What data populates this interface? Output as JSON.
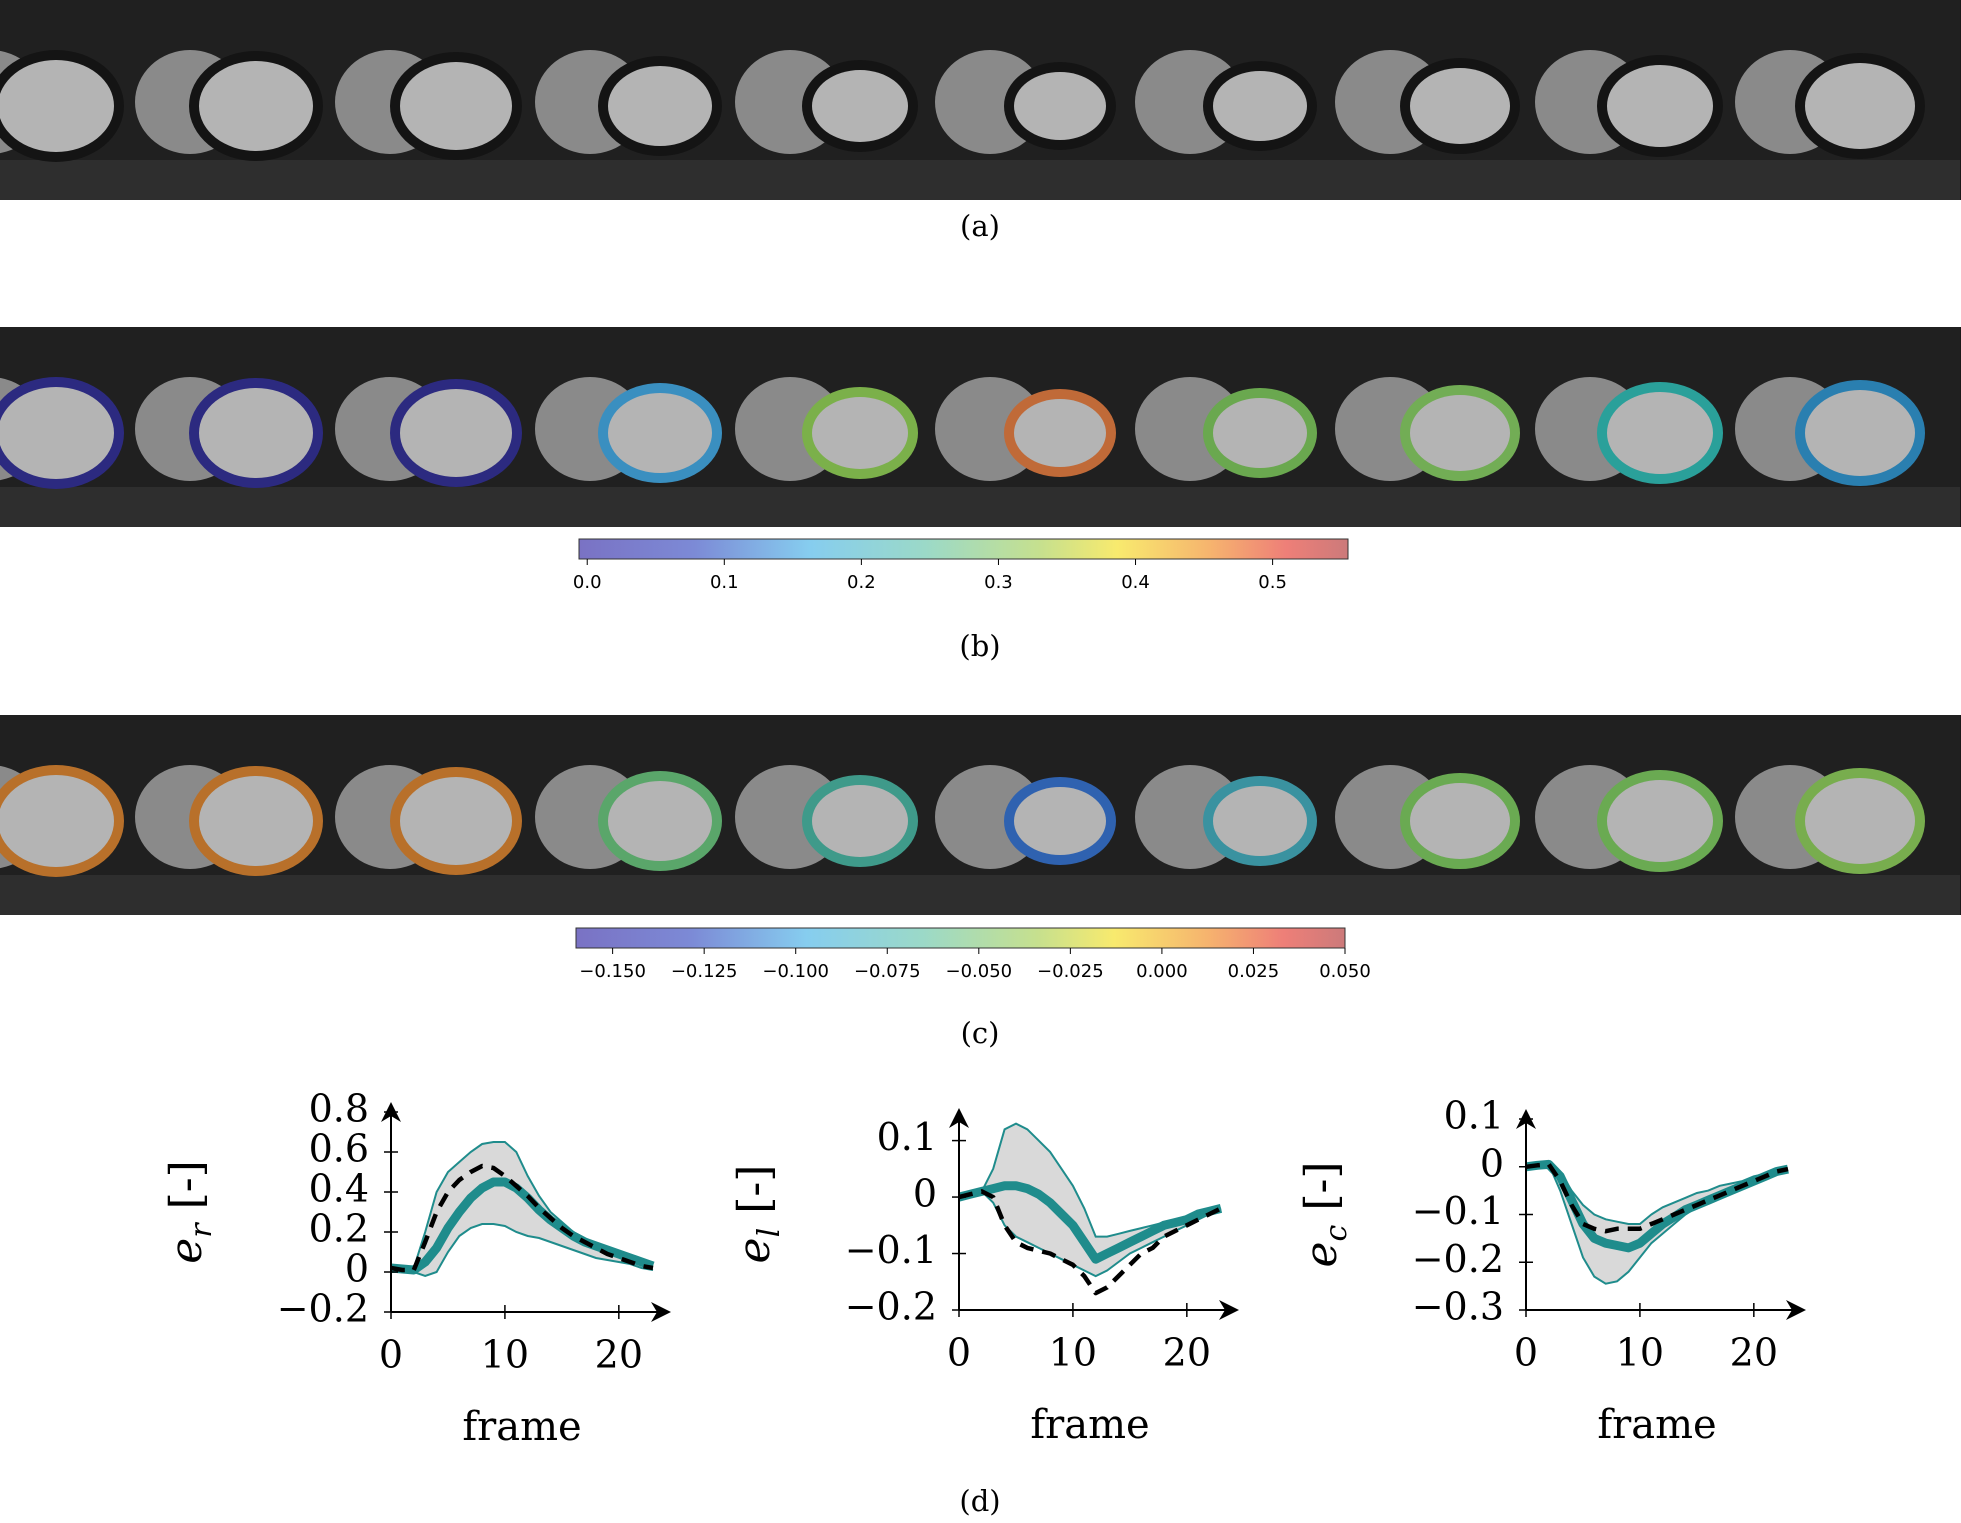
{
  "captions": [
    "(a)",
    "(b)",
    "(c)",
    "(d)"
  ],
  "colorbars": [
    {
      "clim": [
        -0.006,
        0.555
      ],
      "ticks": [
        {
          "value": 0,
          "label": "0.0"
        },
        0.1,
        0.2,
        0.3,
        0.4,
        0.5
      ]
    },
    {
      "clim": [
        -0.16,
        0.05
      ],
      "ticks": [
        {
          "value": -0.15,
          "label": "−0.150"
        },
        {
          "value": -0.125,
          "label": "−0.125"
        },
        {
          "value": -0.1,
          "label": "−0.100"
        },
        {
          "value": -0.075,
          "label": "−0.075"
        },
        {
          "value": -0.05,
          "label": "−0.050"
        },
        {
          "value": -0.025,
          "label": "−0.025"
        },
        {
          "value": 0,
          "label": "0.000"
        },
        {
          "value": 0.025,
          "label": "0.025"
        },
        {
          "value": 0.05,
          "label": "0.050"
        }
      ]
    }
  ],
  "chart_data": [
    {
      "type": "line",
      "xlabel": "frame",
      "ylabel": {
        "symbol": "e",
        "subscript": "r",
        "unit": "[-]"
      },
      "x": [
        0,
        1,
        2,
        3,
        4,
        5,
        6,
        7,
        8,
        9,
        10,
        11,
        12,
        13,
        14,
        15,
        16,
        17,
        18,
        19,
        20,
        21,
        22,
        23
      ],
      "xlim": [
        0,
        23
      ],
      "xticks": [
        0,
        10,
        20
      ],
      "ylim": [
        -0.2,
        0.8
      ],
      "yticks": [
        {
          "value": -0.2,
          "label": "−0.2"
        },
        0,
        0.2,
        0.4,
        0.6,
        0.8
      ],
      "band": {
        "color": "#d9d9d9",
        "edge_color": "#1f8c8c",
        "upper": [
          0.03,
          0.02,
          0.02,
          0.2,
          0.4,
          0.5,
          0.55,
          0.6,
          0.64,
          0.65,
          0.65,
          0.6,
          0.48,
          0.38,
          0.3,
          0.25,
          0.2,
          0.17,
          0.14,
          0.11,
          0.09,
          0.07,
          0.05,
          0.03
        ],
        "lower": [
          0.0,
          0.0,
          0.0,
          -0.02,
          0.0,
          0.1,
          0.18,
          0.22,
          0.24,
          0.24,
          0.23,
          0.2,
          0.18,
          0.17,
          0.15,
          0.13,
          0.11,
          0.09,
          0.07,
          0.06,
          0.05,
          0.04,
          0.02,
          0.01
        ]
      },
      "series": [
        {
          "color": "#1f8c8c",
          "linestyle": "solid",
          "values": [
            0.02,
            0.015,
            0.01,
            0.05,
            0.12,
            0.22,
            0.3,
            0.37,
            0.42,
            0.45,
            0.45,
            0.42,
            0.37,
            0.31,
            0.26,
            0.22,
            0.18,
            0.15,
            0.13,
            0.11,
            0.09,
            0.07,
            0.05,
            0.03
          ]
        },
        {
          "color": "#000000",
          "linestyle": "dashed",
          "values": [
            0.02,
            0.01,
            0.01,
            0.15,
            0.3,
            0.4,
            0.46,
            0.5,
            0.53,
            0.52,
            0.48,
            0.43,
            0.38,
            0.32,
            0.27,
            0.22,
            0.18,
            0.15,
            0.12,
            0.09,
            0.07,
            0.05,
            0.03,
            0.02
          ]
        }
      ]
    },
    {
      "type": "line",
      "xlabel": "frame",
      "ylabel": {
        "symbol": "e",
        "subscript": "l",
        "unit": "[-]"
      },
      "x": [
        0,
        1,
        2,
        3,
        4,
        5,
        6,
        7,
        8,
        9,
        10,
        11,
        12,
        13,
        14,
        15,
        16,
        17,
        18,
        19,
        20,
        21,
        22,
        23
      ],
      "xlim": [
        0,
        23
      ],
      "xticks": [
        0,
        10,
        20
      ],
      "ylim": [
        -0.2,
        0.14
      ],
      "yticks": [
        {
          "value": -0.2,
          "label": "−0.2"
        },
        {
          "value": -0.1,
          "label": "−0.1"
        },
        0,
        0.1
      ],
      "band": {
        "color": "#d9d9d9",
        "edge_color": "#1f8c8c",
        "upper": [
          0,
          0.005,
          0.01,
          0.05,
          0.12,
          0.13,
          0.12,
          0.1,
          0.08,
          0.05,
          0.02,
          -0.02,
          -0.07,
          -0.07,
          -0.065,
          -0.06,
          -0.055,
          -0.05,
          -0.045,
          -0.04,
          -0.035,
          -0.03,
          -0.025,
          -0.02
        ],
        "lower": [
          0,
          0.005,
          0.01,
          -0.01,
          -0.05,
          -0.07,
          -0.08,
          -0.09,
          -0.1,
          -0.11,
          -0.12,
          -0.13,
          -0.14,
          -0.13,
          -0.115,
          -0.1,
          -0.09,
          -0.08,
          -0.07,
          -0.06,
          -0.05,
          -0.04,
          -0.03,
          -0.02
        ]
      },
      "series": [
        {
          "color": "#1f8c8c",
          "linestyle": "solid",
          "values": [
            0,
            0.005,
            0.01,
            0.015,
            0.02,
            0.02,
            0.015,
            0.005,
            -0.01,
            -0.03,
            -0.05,
            -0.08,
            -0.11,
            -0.1,
            -0.09,
            -0.08,
            -0.07,
            -0.06,
            -0.05,
            -0.045,
            -0.04,
            -0.03,
            -0.025,
            -0.02
          ]
        },
        {
          "color": "#000000",
          "linestyle": "dashed",
          "values": [
            0,
            0.005,
            0.01,
            0.0,
            -0.05,
            -0.08,
            -0.09,
            -0.095,
            -0.1,
            -0.11,
            -0.12,
            -0.14,
            -0.17,
            -0.16,
            -0.14,
            -0.12,
            -0.1,
            -0.09,
            -0.07,
            -0.06,
            -0.05,
            -0.04,
            -0.03,
            -0.02
          ]
        }
      ]
    },
    {
      "type": "line",
      "xlabel": "frame",
      "ylabel": {
        "symbol": "e",
        "subscript": "c",
        "unit": "[-]"
      },
      "x": [
        0,
        1,
        2,
        3,
        4,
        5,
        6,
        7,
        8,
        9,
        10,
        11,
        12,
        13,
        14,
        15,
        16,
        17,
        18,
        19,
        20,
        21,
        22,
        23
      ],
      "xlim": [
        0,
        23
      ],
      "xticks": [
        0,
        10,
        20
      ],
      "ylim": [
        -0.3,
        0.1
      ],
      "yticks": [
        {
          "value": -0.3,
          "label": "−0.3"
        },
        {
          "value": -0.2,
          "label": "−0.2"
        },
        {
          "value": -0.1,
          "label": "−0.1"
        },
        0,
        0.1
      ],
      "band": {
        "color": "#d9d9d9",
        "edge_color": "#1f8c8c",
        "upper": [
          0,
          0.003,
          0.005,
          -0.01,
          -0.05,
          -0.08,
          -0.1,
          -0.11,
          -0.115,
          -0.12,
          -0.12,
          -0.1,
          -0.085,
          -0.075,
          -0.065,
          -0.055,
          -0.05,
          -0.04,
          -0.035,
          -0.03,
          -0.02,
          -0.015,
          -0.01,
          -0.005
        ],
        "lower": [
          0,
          0.003,
          0.005,
          -0.05,
          -0.12,
          -0.19,
          -0.23,
          -0.245,
          -0.24,
          -0.22,
          -0.19,
          -0.16,
          -0.14,
          -0.12,
          -0.1,
          -0.085,
          -0.07,
          -0.06,
          -0.05,
          -0.04,
          -0.03,
          -0.02,
          -0.015,
          -0.01
        ]
      },
      "series": [
        {
          "color": "#1f8c8c",
          "linestyle": "solid",
          "values": [
            0,
            0.003,
            0.005,
            -0.02,
            -0.07,
            -0.12,
            -0.15,
            -0.16,
            -0.165,
            -0.17,
            -0.16,
            -0.14,
            -0.12,
            -0.105,
            -0.09,
            -0.08,
            -0.07,
            -0.06,
            -0.05,
            -0.04,
            -0.03,
            -0.02,
            -0.01,
            -0.005
          ]
        },
        {
          "color": "#000000",
          "linestyle": "dashed",
          "values": [
            0,
            0.003,
            0.005,
            -0.03,
            -0.08,
            -0.12,
            -0.13,
            -0.135,
            -0.13,
            -0.13,
            -0.13,
            -0.12,
            -0.11,
            -0.1,
            -0.09,
            -0.08,
            -0.07,
            -0.06,
            -0.05,
            -0.04,
            -0.03,
            -0.02,
            -0.01,
            -0.005
          ]
        }
      ]
    }
  ]
}
